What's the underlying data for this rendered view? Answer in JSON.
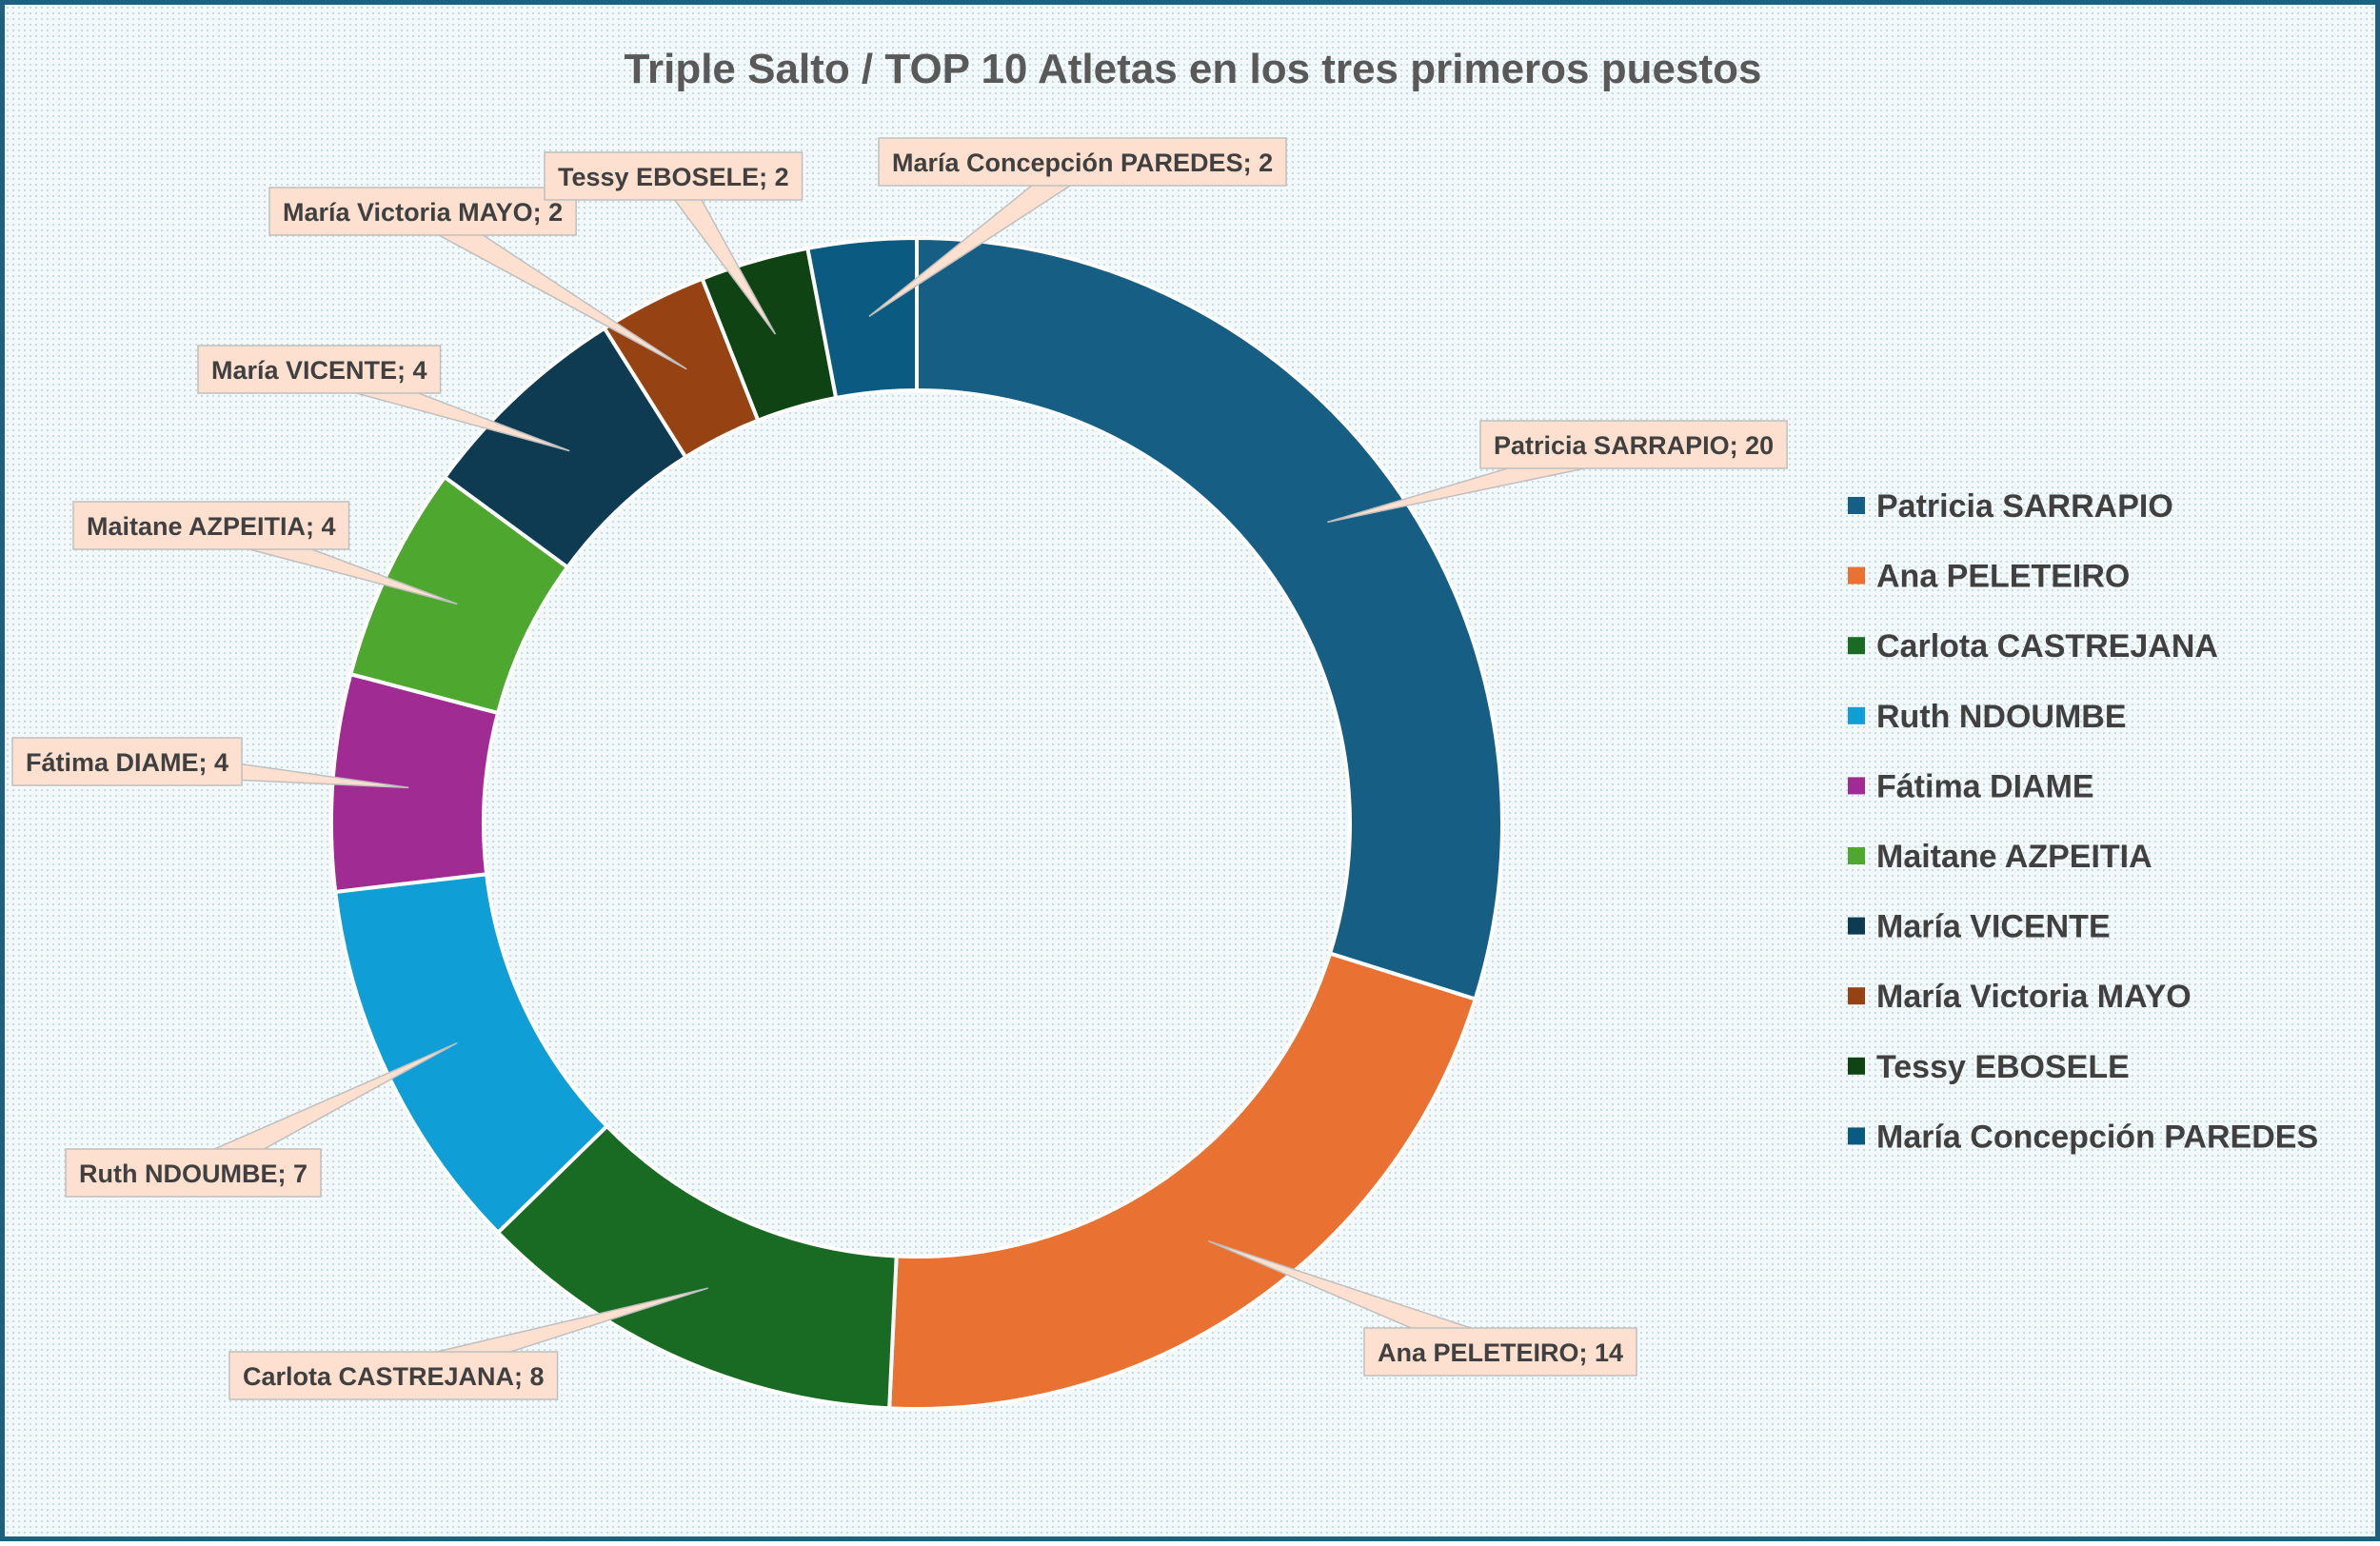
{
  "chart_data": {
    "type": "pie",
    "title": "Triple Salto / TOP 10 Atletas en los tres primeros puestos",
    "legend_position": "right",
    "categories": [
      "Patricia SARRAPIO",
      "Ana PELETEIRO",
      "Carlota CASTREJANA",
      "Ruth NDOUMBE",
      "Fátima DIAME",
      "Maitane AZPEITIA",
      "María VICENTE",
      "María Victoria MAYO",
      "Tessy EBOSELE",
      "María Concepción PAREDES"
    ],
    "values": [
      20,
      14,
      8,
      7,
      4,
      4,
      4,
      2,
      2,
      2
    ],
    "data_labels": [
      "Patricia SARRAPIO; 20",
      "Ana PELETEIRO; 14",
      "Carlota CASTREJANA; 8",
      "Ruth NDOUMBE; 7",
      "Fátima DIAME; 4",
      "Maitane AZPEITIA; 4",
      "María VICENTE; 4",
      "María Victoria MAYO; 2",
      "Tessy EBOSELE; 2",
      "María Concepción PAREDES; 2"
    ],
    "colors": [
      "#165e83",
      "#e97132",
      "#196b24",
      "#0f9ed5",
      "#a02b93",
      "#4ea72e",
      "#0e3a52",
      "#964212",
      "#0f4313",
      "#0b5a82"
    ]
  }
}
